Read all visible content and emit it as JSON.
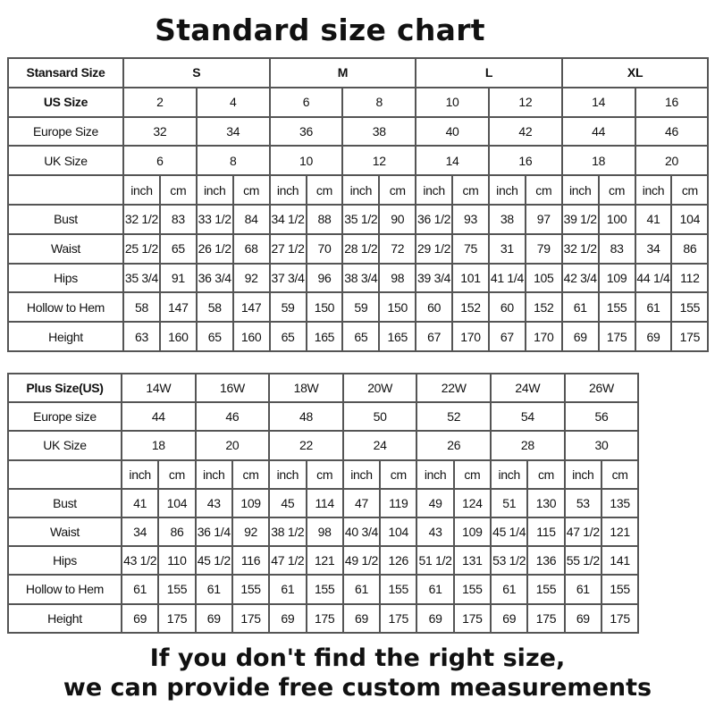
{
  "title": "Standard size chart",
  "standard": {
    "header_label": "Stansard Size",
    "groups": [
      "S",
      "M",
      "L",
      "XL"
    ],
    "rows": [
      {
        "label": "US Size",
        "bold": true,
        "values": [
          "2",
          "4",
          "6",
          "8",
          "10",
          "12",
          "14",
          "16"
        ]
      },
      {
        "label": "Europe Size",
        "values": [
          "32",
          "34",
          "36",
          "38",
          "40",
          "42",
          "44",
          "46"
        ]
      },
      {
        "label": "UK Size",
        "values": [
          "6",
          "8",
          "10",
          "12",
          "14",
          "16",
          "18",
          "20"
        ]
      }
    ],
    "units": [
      "inch",
      "cm"
    ],
    "measures": [
      {
        "label": "Bust",
        "values": [
          "32 1/2",
          "83",
          "33 1/2",
          "84",
          "34 1/2",
          "88",
          "35 1/2",
          "90",
          "36 1/2",
          "93",
          "38",
          "97",
          "39 1/2",
          "100",
          "41",
          "104"
        ]
      },
      {
        "label": "Waist",
        "values": [
          "25 1/2",
          "65",
          "26 1/2",
          "68",
          "27 1/2",
          "70",
          "28 1/2",
          "72",
          "29 1/2",
          "75",
          "31",
          "79",
          "32 1/2",
          "83",
          "34",
          "86"
        ]
      },
      {
        "label": "Hips",
        "values": [
          "35 3/4",
          "91",
          "36 3/4",
          "92",
          "37 3/4",
          "96",
          "38 3/4",
          "98",
          "39 3/4",
          "101",
          "41 1/4",
          "105",
          "42 3/4",
          "109",
          "44 1/4",
          "112"
        ]
      },
      {
        "label": "Hollow to Hem",
        "values": [
          "58",
          "147",
          "58",
          "147",
          "59",
          "150",
          "59",
          "150",
          "60",
          "152",
          "60",
          "152",
          "61",
          "155",
          "61",
          "155"
        ]
      },
      {
        "label": "Height",
        "values": [
          "63",
          "160",
          "65",
          "160",
          "65",
          "165",
          "65",
          "165",
          "67",
          "170",
          "67",
          "170",
          "69",
          "175",
          "69",
          "175"
        ]
      }
    ]
  },
  "plus": {
    "header_label": "Plus Size(US)",
    "sizes": [
      "14W",
      "16W",
      "18W",
      "20W",
      "22W",
      "24W",
      "26W"
    ],
    "rows": [
      {
        "label": "Europe size",
        "values": [
          "44",
          "46",
          "48",
          "50",
          "52",
          "54",
          "56"
        ]
      },
      {
        "label": "UK Size",
        "values": [
          "18",
          "20",
          "22",
          "24",
          "26",
          "28",
          "30"
        ]
      }
    ],
    "units": [
      "inch",
      "cm"
    ],
    "measures": [
      {
        "label": "Bust",
        "values": [
          "41",
          "104",
          "43",
          "109",
          "45",
          "114",
          "47",
          "119",
          "49",
          "124",
          "51",
          "130",
          "53",
          "135"
        ]
      },
      {
        "label": "Waist",
        "values": [
          "34",
          "86",
          "36 1/4",
          "92",
          "38 1/2",
          "98",
          "40 3/4",
          "104",
          "43",
          "109",
          "45 1/4",
          "115",
          "47 1/2",
          "121"
        ]
      },
      {
        "label": "Hips",
        "values": [
          "43 1/2",
          "110",
          "45 1/2",
          "116",
          "47 1/2",
          "121",
          "49 1/2",
          "126",
          "51 1/2",
          "131",
          "53 1/2",
          "136",
          "55 1/2",
          "141"
        ]
      },
      {
        "label": "Hollow to Hem",
        "values": [
          "61",
          "155",
          "61",
          "155",
          "61",
          "155",
          "61",
          "155",
          "61",
          "155",
          "61",
          "155",
          "61",
          "155"
        ]
      },
      {
        "label": "Height",
        "values": [
          "69",
          "175",
          "69",
          "175",
          "69",
          "175",
          "69",
          "175",
          "69",
          "175",
          "69",
          "175",
          "69",
          "175"
        ]
      }
    ]
  },
  "footer": {
    "line1": "If you don't find the right size,",
    "line2": "we can provide free custom measurements"
  }
}
